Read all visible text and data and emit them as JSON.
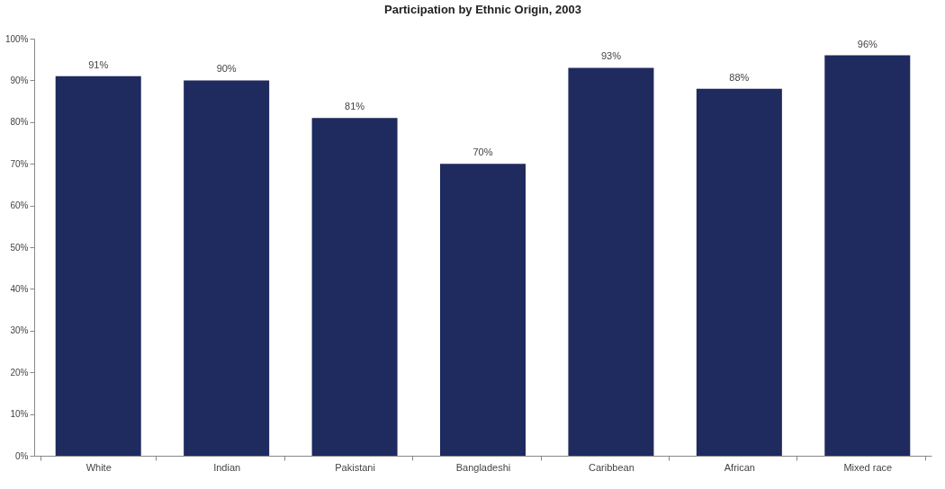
{
  "chart_data": {
    "type": "bar",
    "title": "Participation by Ethnic Origin, 2003",
    "categories": [
      "White",
      "Indian",
      "Pakistani",
      "Bangladeshi",
      "Caribbean",
      "African",
      "Mixed race"
    ],
    "values": [
      91,
      90,
      81,
      70,
      93,
      88,
      96
    ],
    "value_labels": [
      "91%",
      "90%",
      "81%",
      "70%",
      "93%",
      "88%",
      "96%"
    ],
    "color": "#1f2a5e",
    "ylim": [
      0,
      100
    ],
    "yticks": [
      {
        "value": 0,
        "label": "0%"
      },
      {
        "value": 10,
        "label": "10%"
      },
      {
        "value": 20,
        "label": "20%"
      },
      {
        "value": 30,
        "label": "30%"
      },
      {
        "value": 40,
        "label": "40%"
      },
      {
        "value": 50,
        "label": "50%"
      },
      {
        "value": 60,
        "label": "60%"
      },
      {
        "value": 70,
        "label": "70%"
      },
      {
        "value": 80,
        "label": "80%"
      },
      {
        "value": 90,
        "label": "90%"
      },
      {
        "value": 100,
        "label": "100%"
      }
    ],
    "grid": false
  }
}
